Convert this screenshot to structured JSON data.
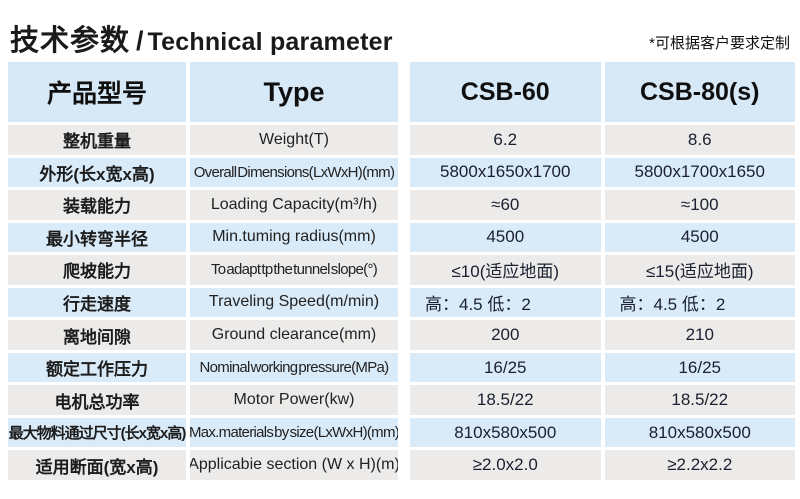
{
  "header": {
    "title_cn": "技术参数",
    "title_sep": "/",
    "title_en": "Technical parameter",
    "note": "*可根据客户要求定制"
  },
  "table": {
    "columns": {
      "product_model": "产品型号",
      "type": "Type",
      "model_1": "CSB-60",
      "model_2": "CSB-80(s)"
    },
    "rows": [
      {
        "cn": "整机重量",
        "en": "Weight(T)",
        "csb60": "6.2",
        "csb80": "8.6"
      },
      {
        "cn": "外形(长x宽x高)",
        "en": "Overall Dimensions(LxWxH)(mm)",
        "csb60": "5800x1650x1700",
        "csb80": "5800x1700x1650"
      },
      {
        "cn": "装载能力",
        "en": "Loading Capacity(m³/h)",
        "csb60": "≈60",
        "csb80": "≈100"
      },
      {
        "cn": "最小转弯半径",
        "en": "Min.tuming radius(mm)",
        "csb60": "4500",
        "csb80": "4500"
      },
      {
        "cn": "爬坡能力",
        "en": "To adapt tp the tunnel slope(°)",
        "csb60": "≤10(适应地面)",
        "csb80": "≤15(适应地面)"
      },
      {
        "cn": "行走速度",
        "en": "Traveling Speed(m/min)",
        "csb60": "高：4.5 低：2",
        "csb80": "高：4.5 低：2"
      },
      {
        "cn": "离地间隙",
        "en": "Ground clearance(mm)",
        "csb60": "200",
        "csb80": "210"
      },
      {
        "cn": "额定工作压力",
        "en": "Nominal working pressure(MPa)",
        "csb60": "16/25",
        "csb80": "16/25"
      },
      {
        "cn": "电机总功率",
        "en": "Motor Power(kw)",
        "csb60": "18.5/22",
        "csb80": "18.5/22"
      },
      {
        "cn": "最大物料通过尺寸(长x宽x高)",
        "en": "Max.materials by size(LxWxH)(mm)",
        "csb60": "810x580x500",
        "csb80": "810x580x500"
      },
      {
        "cn": "适用断面(宽x高)",
        "en": "Applicabie section (W x H)(m)",
        "csb60": "≥2.0x2.0",
        "csb80": "≥2.2x2.2"
      }
    ]
  },
  "colors": {
    "header_blue": "#d7e8f6",
    "row_blue": "#d9eaf8",
    "row_gray": "#ecebe9",
    "text": "#1a1a1a"
  }
}
